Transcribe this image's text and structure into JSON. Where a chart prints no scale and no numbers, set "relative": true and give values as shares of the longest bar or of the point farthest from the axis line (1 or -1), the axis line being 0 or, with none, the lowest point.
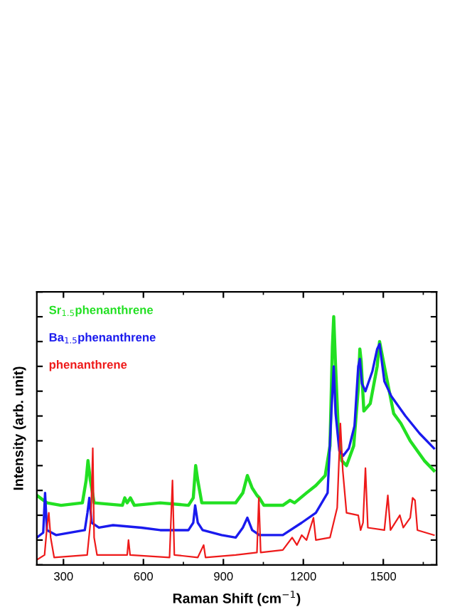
{
  "chart_data": {
    "type": "line",
    "relative": true,
    "xlabel": "Raman Shift (cm$^{−1}$)",
    "ylabel": "Intensity (arb. unit)",
    "xlim": [
      200,
      1700
    ],
    "xticks": [
      300,
      600,
      900,
      1200,
      1500
    ],
    "grid": false,
    "legend": "top left",
    "marker": "none",
    "line_style": "solid",
    "series": [
      {
        "name": "Sr$_{1.5}$phenanthrene",
        "color": "#22e022",
        "x": [
          200,
          238,
          291,
          371,
          385,
          392,
          401,
          415,
          521,
          530,
          539,
          551,
          566,
          663,
          769,
          787,
          796,
          804,
          819,
          946,
          973,
          990,
          1008,
          1026,
          1035,
          1052,
          1123,
          1150,
          1167,
          1212,
          1247,
          1282,
          1300,
          1309,
          1314,
          1321,
          1332,
          1344,
          1362,
          1389,
          1406,
          1412,
          1417,
          1427,
          1451,
          1477,
          1486,
          1504,
          1539,
          1566,
          1601,
          1654,
          1690
        ],
        "values": [
          0.28,
          0.25,
          0.24,
          0.25,
          0.34,
          0.42,
          0.34,
          0.25,
          0.24,
          0.27,
          0.25,
          0.27,
          0.24,
          0.25,
          0.24,
          0.27,
          0.4,
          0.34,
          0.25,
          0.25,
          0.29,
          0.36,
          0.31,
          0.28,
          0.27,
          0.24,
          0.24,
          0.26,
          0.25,
          0.29,
          0.32,
          0.36,
          0.48,
          0.88,
          1,
          0.8,
          0.52,
          0.42,
          0.4,
          0.48,
          0.71,
          0.87,
          0.82,
          0.62,
          0.65,
          0.8,
          0.9,
          0.8,
          0.61,
          0.57,
          0.5,
          0.42,
          0.38
        ]
      },
      {
        "name": "Ba$_{1.5}$phenanthrene",
        "color": "#1a1aee",
        "x": [
          200,
          224,
          231,
          238,
          273,
          380,
          390,
          397,
          406,
          433,
          486,
          592,
          663,
          769,
          787,
          794,
          804,
          822,
          893,
          946,
          973,
          990,
          1008,
          1035,
          1123,
          1194,
          1247,
          1291,
          1305,
          1314,
          1321,
          1335,
          1350,
          1371,
          1392,
          1406,
          1412,
          1420,
          1433,
          1459,
          1477,
          1486,
          1504,
          1530,
          1583,
          1636,
          1690
        ],
        "values": [
          0.11,
          0.13,
          0.29,
          0.14,
          0.12,
          0.14,
          0.21,
          0.27,
          0.17,
          0.15,
          0.16,
          0.15,
          0.14,
          0.14,
          0.17,
          0.24,
          0.17,
          0.14,
          0.12,
          0.11,
          0.15,
          0.19,
          0.14,
          0.12,
          0.12,
          0.17,
          0.21,
          0.29,
          0.61,
          0.8,
          0.61,
          0.46,
          0.44,
          0.47,
          0.56,
          0.8,
          0.83,
          0.73,
          0.7,
          0.78,
          0.87,
          0.89,
          0.74,
          0.68,
          0.6,
          0.53,
          0.47
        ]
      },
      {
        "name": "phenanthrene",
        "color": "#ee1a1a",
        "x": [
          200,
          229,
          238,
          245,
          252,
          265,
          389,
          403,
          410,
          415,
          426,
          539,
          544,
          550,
          698,
          709,
          716,
          804,
          826,
          833,
          946,
          1026,
          1033,
          1040,
          1123,
          1158,
          1176,
          1194,
          1212,
          1238,
          1247,
          1300,
          1327,
          1339,
          1348,
          1362,
          1406,
          1415,
          1424,
          1433,
          1442,
          1504,
          1517,
          1527,
          1562,
          1575,
          1601,
          1610,
          1619,
          1628,
          1690
        ],
        "values": [
          0.02,
          0.04,
          0.15,
          0.21,
          0.11,
          0.03,
          0.04,
          0.19,
          0.47,
          0.11,
          0.04,
          0.04,
          0.1,
          0.04,
          0.03,
          0.34,
          0.04,
          0.03,
          0.08,
          0.03,
          0.04,
          0.05,
          0.27,
          0.05,
          0.06,
          0.11,
          0.08,
          0.12,
          0.1,
          0.19,
          0.1,
          0.11,
          0.23,
          0.57,
          0.38,
          0.21,
          0.2,
          0.14,
          0.17,
          0.39,
          0.15,
          0.14,
          0.28,
          0.14,
          0.2,
          0.15,
          0.19,
          0.27,
          0.26,
          0.14,
          0.12
        ]
      }
    ]
  }
}
